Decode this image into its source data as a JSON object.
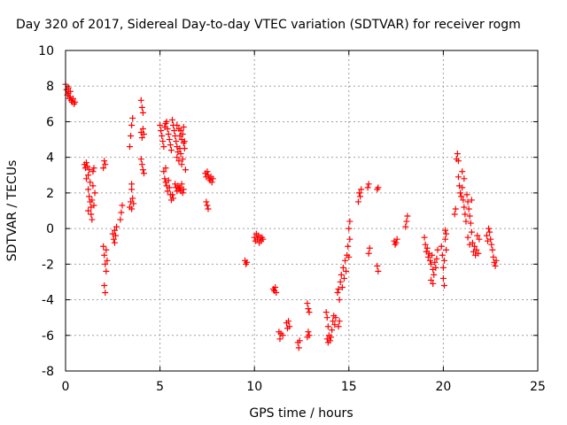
{
  "chart_data": {
    "type": "scatter",
    "title": "Day 320 of 2017, Sidereal Day-to-day VTEC variation (SDTVAR) for receiver rogm",
    "xlabel": "GPS time / hours",
    "ylabel": "SDTVAR / TECUs",
    "xlim": [
      0,
      25
    ],
    "ylim": [
      -8,
      10
    ],
    "xticks": [
      0,
      5,
      10,
      15,
      20,
      25
    ],
    "yticks": [
      -8,
      -6,
      -4,
      -2,
      0,
      2,
      4,
      6,
      8,
      10
    ],
    "xtick_labels": [
      "0",
      "5",
      "10",
      "15",
      "20",
      "25"
    ],
    "ytick_labels": [
      "-8",
      "-6",
      "-4",
      "-2",
      "0",
      "2",
      "4",
      "6",
      "8",
      "10"
    ],
    "grid": true,
    "marker": "plus",
    "marker_color": "#ff0000",
    "series": [
      {
        "name": "SDTVAR",
        "points": [
          [
            0.0,
            8.1
          ],
          [
            0.05,
            7.8
          ],
          [
            0.1,
            7.5
          ],
          [
            0.15,
            7.6
          ],
          [
            0.2,
            7.3
          ],
          [
            0.25,
            7.4
          ],
          [
            0.3,
            7.2
          ],
          [
            0.35,
            7.1
          ],
          [
            0.4,
            7.3
          ],
          [
            0.45,
            7.0
          ],
          [
            0.5,
            7.1
          ],
          [
            0.15,
            7.9
          ],
          [
            0.25,
            7.7
          ],
          [
            1.0,
            3.6
          ],
          [
            1.05,
            3.4
          ],
          [
            1.1,
            3.7
          ],
          [
            1.1,
            2.8
          ],
          [
            1.15,
            3.5
          ],
          [
            1.2,
            3.0
          ],
          [
            1.2,
            2.2
          ],
          [
            1.25,
            3.3
          ],
          [
            1.25,
            1.8
          ],
          [
            1.3,
            1.5
          ],
          [
            1.3,
            2.6
          ],
          [
            1.35,
            1.2
          ],
          [
            1.35,
            0.8
          ],
          [
            1.4,
            1.6
          ],
          [
            1.4,
            0.5
          ],
          [
            1.45,
            3.2
          ],
          [
            1.45,
            2.4
          ],
          [
            1.5,
            1.3
          ],
          [
            1.5,
            3.4
          ],
          [
            1.55,
            2.0
          ],
          [
            1.2,
            1.0
          ],
          [
            2.0,
            -1.0
          ],
          [
            2.05,
            -1.5
          ],
          [
            2.05,
            -3.2
          ],
          [
            2.1,
            -2.0
          ],
          [
            2.1,
            -3.6
          ],
          [
            2.15,
            -1.2
          ],
          [
            2.15,
            -2.4
          ],
          [
            2.2,
            -1.8
          ],
          [
            2.0,
            3.4
          ],
          [
            2.05,
            3.8
          ],
          [
            2.1,
            3.6
          ],
          [
            2.5,
            -0.3
          ],
          [
            2.55,
            -0.6
          ],
          [
            2.6,
            -0.1
          ],
          [
            2.65,
            -0.4
          ],
          [
            2.7,
            0.1
          ],
          [
            2.6,
            -0.8
          ],
          [
            2.9,
            0.5
          ],
          [
            2.95,
            0.9
          ],
          [
            3.0,
            1.3
          ],
          [
            3.4,
            1.2
          ],
          [
            3.45,
            1.5
          ],
          [
            3.5,
            1.1
          ],
          [
            3.55,
            1.7
          ],
          [
            3.6,
            1.4
          ],
          [
            3.5,
            2.2
          ],
          [
            3.5,
            2.5
          ],
          [
            3.4,
            4.6
          ],
          [
            3.45,
            5.2
          ],
          [
            3.5,
            5.8
          ],
          [
            3.55,
            6.2
          ],
          [
            4.0,
            5.4
          ],
          [
            4.05,
            5.1
          ],
          [
            4.1,
            5.6
          ],
          [
            4.15,
            5.3
          ],
          [
            4.0,
            7.2
          ],
          [
            4.05,
            6.8
          ],
          [
            4.1,
            6.5
          ],
          [
            4.0,
            3.9
          ],
          [
            4.05,
            3.6
          ],
          [
            4.1,
            3.3
          ],
          [
            4.15,
            3.1
          ],
          [
            5.0,
            5.8
          ],
          [
            5.05,
            5.5
          ],
          [
            5.1,
            5.2
          ],
          [
            5.15,
            4.9
          ],
          [
            5.2,
            4.6
          ],
          [
            5.25,
            5.7
          ],
          [
            5.3,
            5.9
          ],
          [
            5.35,
            6.0
          ],
          [
            5.4,
            5.6
          ],
          [
            5.45,
            5.3
          ],
          [
            5.5,
            5.0
          ],
          [
            5.55,
            4.7
          ],
          [
            5.6,
            4.4
          ],
          [
            5.65,
            6.1
          ],
          [
            5.7,
            5.8
          ],
          [
            5.75,
            5.5
          ],
          [
            5.8,
            5.2
          ],
          [
            5.85,
            4.9
          ],
          [
            5.9,
            4.6
          ],
          [
            5.2,
            3.2
          ],
          [
            5.25,
            2.8
          ],
          [
            5.3,
            2.6
          ],
          [
            5.35,
            2.4
          ],
          [
            5.4,
            2.1
          ],
          [
            5.45,
            2.7
          ],
          [
            5.5,
            2.3
          ],
          [
            5.55,
            1.9
          ],
          [
            5.6,
            1.6
          ],
          [
            5.65,
            1.9
          ],
          [
            5.7,
            1.7
          ],
          [
            5.3,
            3.4
          ],
          [
            5.8,
            2.5
          ],
          [
            5.85,
            2.3
          ],
          [
            5.9,
            2.1
          ],
          [
            5.95,
            2.4
          ],
          [
            6.0,
            2.2
          ],
          [
            6.05,
            2.3
          ],
          [
            6.1,
            2.1
          ],
          [
            6.15,
            2.5
          ],
          [
            6.2,
            2.0
          ],
          [
            6.25,
            2.2
          ],
          [
            5.9,
            4.0
          ],
          [
            5.95,
            4.3
          ],
          [
            6.0,
            3.8
          ],
          [
            6.05,
            4.5
          ],
          [
            6.1,
            4.2
          ],
          [
            6.15,
            3.6
          ],
          [
            6.2,
            3.9
          ],
          [
            6.25,
            4.8
          ],
          [
            6.3,
            4.5
          ],
          [
            6.35,
            3.3
          ],
          [
            5.9,
            5.8
          ],
          [
            6.0,
            5.6
          ],
          [
            6.05,
            5.2
          ],
          [
            6.1,
            5.5
          ],
          [
            6.15,
            5.0
          ],
          [
            6.2,
            5.3
          ],
          [
            6.25,
            5.7
          ],
          [
            6.3,
            4.9
          ],
          [
            7.4,
            3.1
          ],
          [
            7.45,
            2.9
          ],
          [
            7.5,
            3.2
          ],
          [
            7.55,
            3.0
          ],
          [
            7.6,
            2.8
          ],
          [
            7.65,
            2.7
          ],
          [
            7.7,
            2.9
          ],
          [
            7.75,
            2.6
          ],
          [
            7.8,
            2.8
          ],
          [
            7.45,
            1.5
          ],
          [
            7.5,
            1.3
          ],
          [
            7.55,
            1.1
          ],
          [
            9.5,
            -1.8
          ],
          [
            9.55,
            -2.0
          ],
          [
            9.6,
            -1.9
          ],
          [
            10.0,
            -0.5
          ],
          [
            10.05,
            -0.7
          ],
          [
            10.1,
            -0.3
          ],
          [
            10.15,
            -0.6
          ],
          [
            10.2,
            -0.4
          ],
          [
            10.25,
            -0.8
          ],
          [
            10.3,
            -0.5
          ],
          [
            10.35,
            -0.7
          ],
          [
            10.4,
            -0.5
          ],
          [
            10.45,
            -0.6
          ],
          [
            11.0,
            -3.4
          ],
          [
            11.05,
            -3.5
          ],
          [
            11.1,
            -3.3
          ],
          [
            11.15,
            -3.6
          ],
          [
            11.3,
            -5.8
          ],
          [
            11.35,
            -6.2
          ],
          [
            11.4,
            -5.9
          ],
          [
            11.5,
            -6.0
          ],
          [
            11.7,
            -5.3
          ],
          [
            11.75,
            -5.6
          ],
          [
            11.8,
            -5.2
          ],
          [
            11.85,
            -5.5
          ],
          [
            12.3,
            -6.4
          ],
          [
            12.35,
            -6.7
          ],
          [
            12.4,
            -6.3
          ],
          [
            12.8,
            -4.2
          ],
          [
            12.85,
            -4.5
          ],
          [
            12.9,
            -4.7
          ],
          [
            12.85,
            -5.8
          ],
          [
            12.9,
            -6.0
          ],
          [
            12.8,
            -6.1
          ],
          [
            13.8,
            -4.7
          ],
          [
            13.85,
            -5.0
          ],
          [
            13.9,
            -5.5
          ],
          [
            13.95,
            -6.0
          ],
          [
            14.0,
            -6.3
          ],
          [
            14.05,
            -6.1
          ],
          [
            14.1,
            -5.7
          ],
          [
            14.15,
            -5.2
          ],
          [
            14.2,
            -4.9
          ],
          [
            14.25,
            -5.4
          ],
          [
            14.3,
            -5.0
          ],
          [
            13.85,
            -6.2
          ],
          [
            13.9,
            -6.4
          ],
          [
            14.4,
            -3.6
          ],
          [
            14.45,
            -3.4
          ],
          [
            14.5,
            -4.0
          ],
          [
            14.55,
            -3.0
          ],
          [
            14.6,
            -2.6
          ],
          [
            14.65,
            -3.3
          ],
          [
            14.7,
            -2.2
          ],
          [
            14.75,
            -2.8
          ],
          [
            14.8,
            -1.8
          ],
          [
            14.85,
            -2.4
          ],
          [
            14.9,
            -1.5
          ],
          [
            14.95,
            -1.0
          ],
          [
            15.0,
            -1.6
          ],
          [
            15.05,
            -0.6
          ],
          [
            15.0,
            0.0
          ],
          [
            15.05,
            0.4
          ],
          [
            14.5,
            -5.2
          ],
          [
            14.45,
            -5.5
          ],
          [
            15.5,
            1.5
          ],
          [
            15.55,
            2.0
          ],
          [
            15.6,
            1.8
          ],
          [
            15.65,
            2.2
          ],
          [
            16.0,
            2.3
          ],
          [
            16.05,
            2.5
          ],
          [
            16.1,
            -1.1
          ],
          [
            16.05,
            -1.4
          ],
          [
            16.5,
            2.2
          ],
          [
            16.55,
            2.3
          ],
          [
            16.5,
            -2.1
          ],
          [
            16.55,
            -2.4
          ],
          [
            17.4,
            -0.7
          ],
          [
            17.45,
            -0.9
          ],
          [
            17.5,
            -0.8
          ],
          [
            17.55,
            -0.6
          ],
          [
            18.0,
            0.1
          ],
          [
            18.05,
            0.4
          ],
          [
            18.1,
            0.7
          ],
          [
            19.0,
            -0.5
          ],
          [
            19.05,
            -0.9
          ],
          [
            19.1,
            -1.3
          ],
          [
            19.15,
            -1.1
          ],
          [
            19.2,
            -1.6
          ],
          [
            19.25,
            -1.4
          ],
          [
            19.3,
            -1.8
          ],
          [
            19.35,
            -2.0
          ],
          [
            19.4,
            -1.5
          ],
          [
            19.45,
            -2.3
          ],
          [
            19.5,
            -2.6
          ],
          [
            19.55,
            -1.9
          ],
          [
            19.6,
            -2.2
          ],
          [
            19.65,
            -1.7
          ],
          [
            19.7,
            -1.2
          ],
          [
            19.35,
            -2.9
          ],
          [
            19.45,
            -3.1
          ],
          [
            19.9,
            -1.0
          ],
          [
            19.95,
            -1.5
          ],
          [
            20.0,
            -2.2
          ],
          [
            20.05,
            -1.8
          ],
          [
            20.1,
            -0.6
          ],
          [
            20.15,
            -0.3
          ],
          [
            20.1,
            -0.1
          ],
          [
            20.0,
            -2.8
          ],
          [
            20.05,
            -3.2
          ],
          [
            20.15,
            -1.2
          ],
          [
            20.6,
            0.8
          ],
          [
            20.65,
            1.1
          ],
          [
            20.7,
            3.9
          ],
          [
            20.75,
            4.2
          ],
          [
            20.8,
            3.8
          ],
          [
            20.8,
            2.9
          ],
          [
            20.85,
            2.4
          ],
          [
            20.9,
            2.0
          ],
          [
            20.95,
            1.8
          ],
          [
            21.0,
            2.3
          ],
          [
            21.05,
            1.6
          ],
          [
            21.1,
            1.2
          ],
          [
            21.15,
            0.8
          ],
          [
            21.2,
            0.4
          ],
          [
            21.25,
            1.9
          ],
          [
            21.3,
            1.5
          ],
          [
            21.35,
            1.1
          ],
          [
            21.4,
            0.7
          ],
          [
            21.45,
            0.3
          ],
          [
            21.5,
            -0.2
          ],
          [
            21.55,
            -0.8
          ],
          [
            21.6,
            -1.3
          ],
          [
            21.65,
            -1.0
          ],
          [
            21.7,
            -1.5
          ],
          [
            21.75,
            -1.2
          ],
          [
            21.8,
            -0.4
          ],
          [
            21.85,
            -1.4
          ],
          [
            21.9,
            -0.6
          ],
          [
            21.0,
            3.2
          ],
          [
            21.1,
            2.8
          ],
          [
            21.3,
            -0.5
          ],
          [
            21.4,
            -0.9
          ],
          [
            21.5,
            1.6
          ],
          [
            22.3,
            -0.4
          ],
          [
            22.35,
            -0.7
          ],
          [
            22.4,
            0.0
          ],
          [
            22.45,
            -0.2
          ],
          [
            22.5,
            -0.6
          ],
          [
            22.55,
            -0.9
          ],
          [
            22.6,
            -1.2
          ],
          [
            22.65,
            -1.6
          ],
          [
            22.7,
            -1.9
          ],
          [
            22.75,
            -2.1
          ],
          [
            22.8,
            -1.8
          ]
        ]
      }
    ]
  }
}
